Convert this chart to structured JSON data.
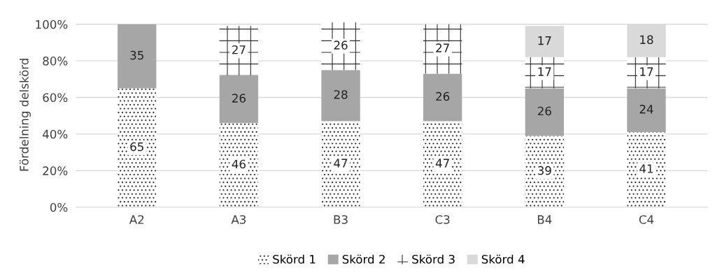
{
  "chart_data": {
    "type": "bar",
    "stacked": true,
    "ylabel": "Fördelning delskörd",
    "categories": [
      "A2",
      "A3",
      "B3",
      "C3",
      "B4",
      "C4"
    ],
    "series": [
      {
        "name": "Skörd 1",
        "color": "#ffffff",
        "values": [
          65,
          46,
          47,
          47,
          39,
          41
        ]
      },
      {
        "name": "Skörd 2",
        "color": "#a6a6a6",
        "values": [
          35,
          26,
          28,
          26,
          26,
          24
        ]
      },
      {
        "name": "Skörd 3",
        "color": "#ffffff",
        "values": [
          null,
          27,
          26,
          27,
          17,
          17
        ]
      },
      {
        "name": "Skörd 4",
        "color": "#d9d9d9",
        "values": [
          null,
          null,
          null,
          null,
          17,
          18
        ]
      }
    ],
    "ylim": [
      0,
      101
    ],
    "yticks": [
      {
        "value": 0,
        "label": "0%"
      },
      {
        "value": 20,
        "label": "20%"
      },
      {
        "value": 40,
        "label": "40%"
      },
      {
        "value": 60,
        "label": "60%"
      },
      {
        "value": 80,
        "label": "80%"
      },
      {
        "value": 100,
        "label": "100%"
      }
    ],
    "grid": "y",
    "legend": "bottom",
    "data_labels": true
  }
}
